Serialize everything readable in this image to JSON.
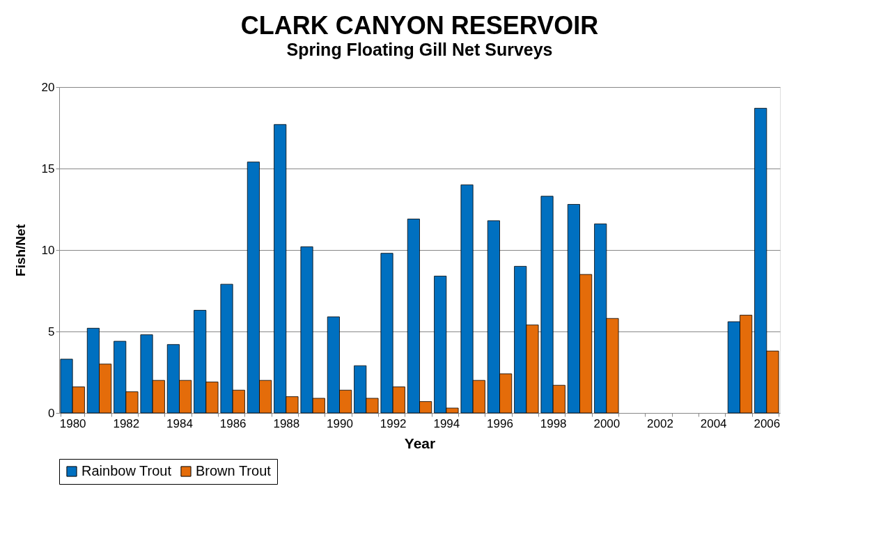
{
  "chart_data": {
    "type": "bar",
    "title": "CLARK CANYON RESERVOIR",
    "subtitle": "Spring Floating Gill Net Surveys",
    "xlabel": "Year",
    "ylabel": "Fish/Net",
    "categories": [
      "1980",
      null,
      "1982",
      null,
      "1984",
      null,
      "1986",
      null,
      "1988",
      null,
      "1990",
      null,
      "1992",
      null,
      "1994",
      null,
      "1996",
      null,
      "1998",
      null,
      "2000",
      null,
      "2002",
      null,
      "2004",
      null,
      "2006"
    ],
    "series": [
      {
        "name": "Rainbow Trout",
        "color": "#0070c0",
        "values": [
          3.3,
          5.2,
          4.4,
          4.8,
          4.2,
          6.3,
          7.9,
          15.4,
          17.7,
          10.2,
          5.9,
          2.9,
          9.8,
          11.9,
          8.4,
          14.0,
          11.8,
          9.0,
          13.3,
          12.8,
          11.6,
          null,
          null,
          null,
          null,
          5.6,
          18.7
        ]
      },
      {
        "name": "Brown Trout",
        "color": "#e46c0a",
        "values": [
          1.6,
          3.0,
          1.3,
          2.0,
          2.0,
          1.9,
          1.4,
          2.0,
          1.0,
          0.9,
          1.4,
          0.9,
          1.6,
          0.7,
          0.3,
          2.0,
          2.4,
          5.4,
          1.7,
          8.5,
          5.8,
          null,
          null,
          null,
          null,
          6.0,
          3.8
        ]
      }
    ],
    "ylim": [
      0,
      20
    ],
    "yticks": [
      0,
      5,
      10,
      15,
      20
    ],
    "grid": "y",
    "legend": "bottom"
  }
}
